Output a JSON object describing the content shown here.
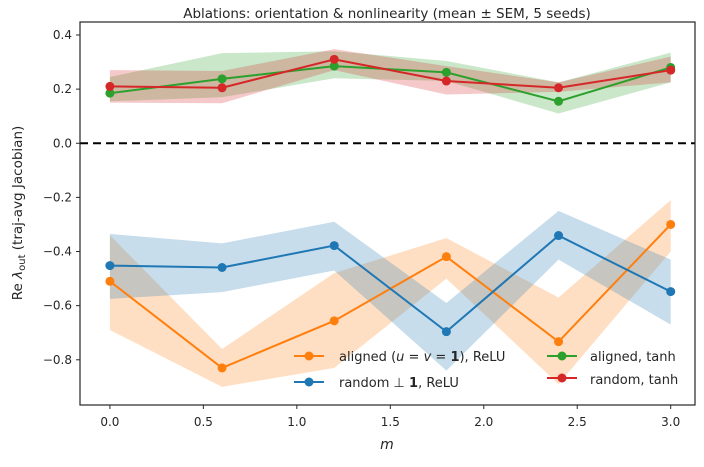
{
  "chart_data": {
    "type": "line",
    "title": "Ablations: orientation & nonlinearity (mean ± SEM, 5 seeds)",
    "xlabel": "m",
    "ylabel": "Re λ_out (traj-avg Jacobian)",
    "ylabel_parts": {
      "pre": "Re ",
      "sym": "λ",
      "sub": "out",
      "post": " (traj-avg Jacobian)"
    },
    "xlim": [
      -0.16,
      3.13
    ],
    "ylim": [
      -0.967,
      0.448
    ],
    "xticks": [
      0.0,
      0.5,
      1.0,
      1.5,
      2.0,
      2.5,
      3.0
    ],
    "xtick_labels": [
      "0.0",
      "0.5",
      "1.0",
      "1.5",
      "2.0",
      "2.5",
      "3.0"
    ],
    "yticks": [
      0.4,
      0.2,
      0.0,
      -0.2,
      -0.4,
      -0.6,
      -0.8
    ],
    "ytick_labels": [
      "0.4",
      "0.2",
      "0.0",
      "−0.2",
      "−0.4",
      "−0.6",
      "−0.8"
    ],
    "grid": false,
    "reference_line": {
      "y": 0,
      "style": "dashed",
      "color": "#000000"
    },
    "legend_placement": "lower-right",
    "x": [
      0,
      0.6,
      1.2,
      1.8,
      2.4,
      3.0
    ],
    "series": [
      {
        "name": "aligned (u = v = 1), ReLU",
        "legend_parts": [
          "aligned (",
          "u",
          " = ",
          "v",
          " = ",
          "1",
          "), ReLU"
        ],
        "color": "#ff7f0e",
        "values": [
          -0.51,
          -0.83,
          -0.656,
          -0.419,
          -0.733,
          -0.3
        ],
        "upper": [
          -0.34,
          -0.76,
          -0.48,
          -0.35,
          -0.57,
          -0.21
        ],
        "lower": [
          -0.69,
          -0.9,
          -0.83,
          -0.5,
          -0.89,
          -0.4
        ]
      },
      {
        "name": "random ⊥ 1, ReLU",
        "legend_parts": [
          "random ⊥ ",
          "1",
          ", ReLU"
        ],
        "color": "#1f77b4",
        "values": [
          -0.452,
          -0.459,
          -0.378,
          -0.696,
          -0.341,
          -0.548
        ],
        "upper": [
          -0.335,
          -0.37,
          -0.29,
          -0.59,
          -0.25,
          -0.43
        ],
        "lower": [
          -0.575,
          -0.55,
          -0.47,
          -0.84,
          -0.43,
          -0.67
        ]
      },
      {
        "name": "aligned, tanh",
        "color": "#2ca02c",
        "values": [
          0.185,
          0.238,
          0.285,
          0.262,
          0.155,
          0.28
        ],
        "upper": [
          0.245,
          0.333,
          0.34,
          0.304,
          0.225,
          0.335
        ],
        "lower": [
          0.155,
          0.17,
          0.24,
          0.23,
          0.11,
          0.225
        ]
      },
      {
        "name": "random, tanh",
        "color": "#d62728",
        "values": [
          0.21,
          0.205,
          0.31,
          0.23,
          0.205,
          0.27
        ],
        "upper": [
          0.27,
          0.267,
          0.348,
          0.285,
          0.225,
          0.32
        ],
        "lower": [
          0.15,
          0.148,
          0.27,
          0.18,
          0.19,
          0.225
        ]
      }
    ]
  }
}
